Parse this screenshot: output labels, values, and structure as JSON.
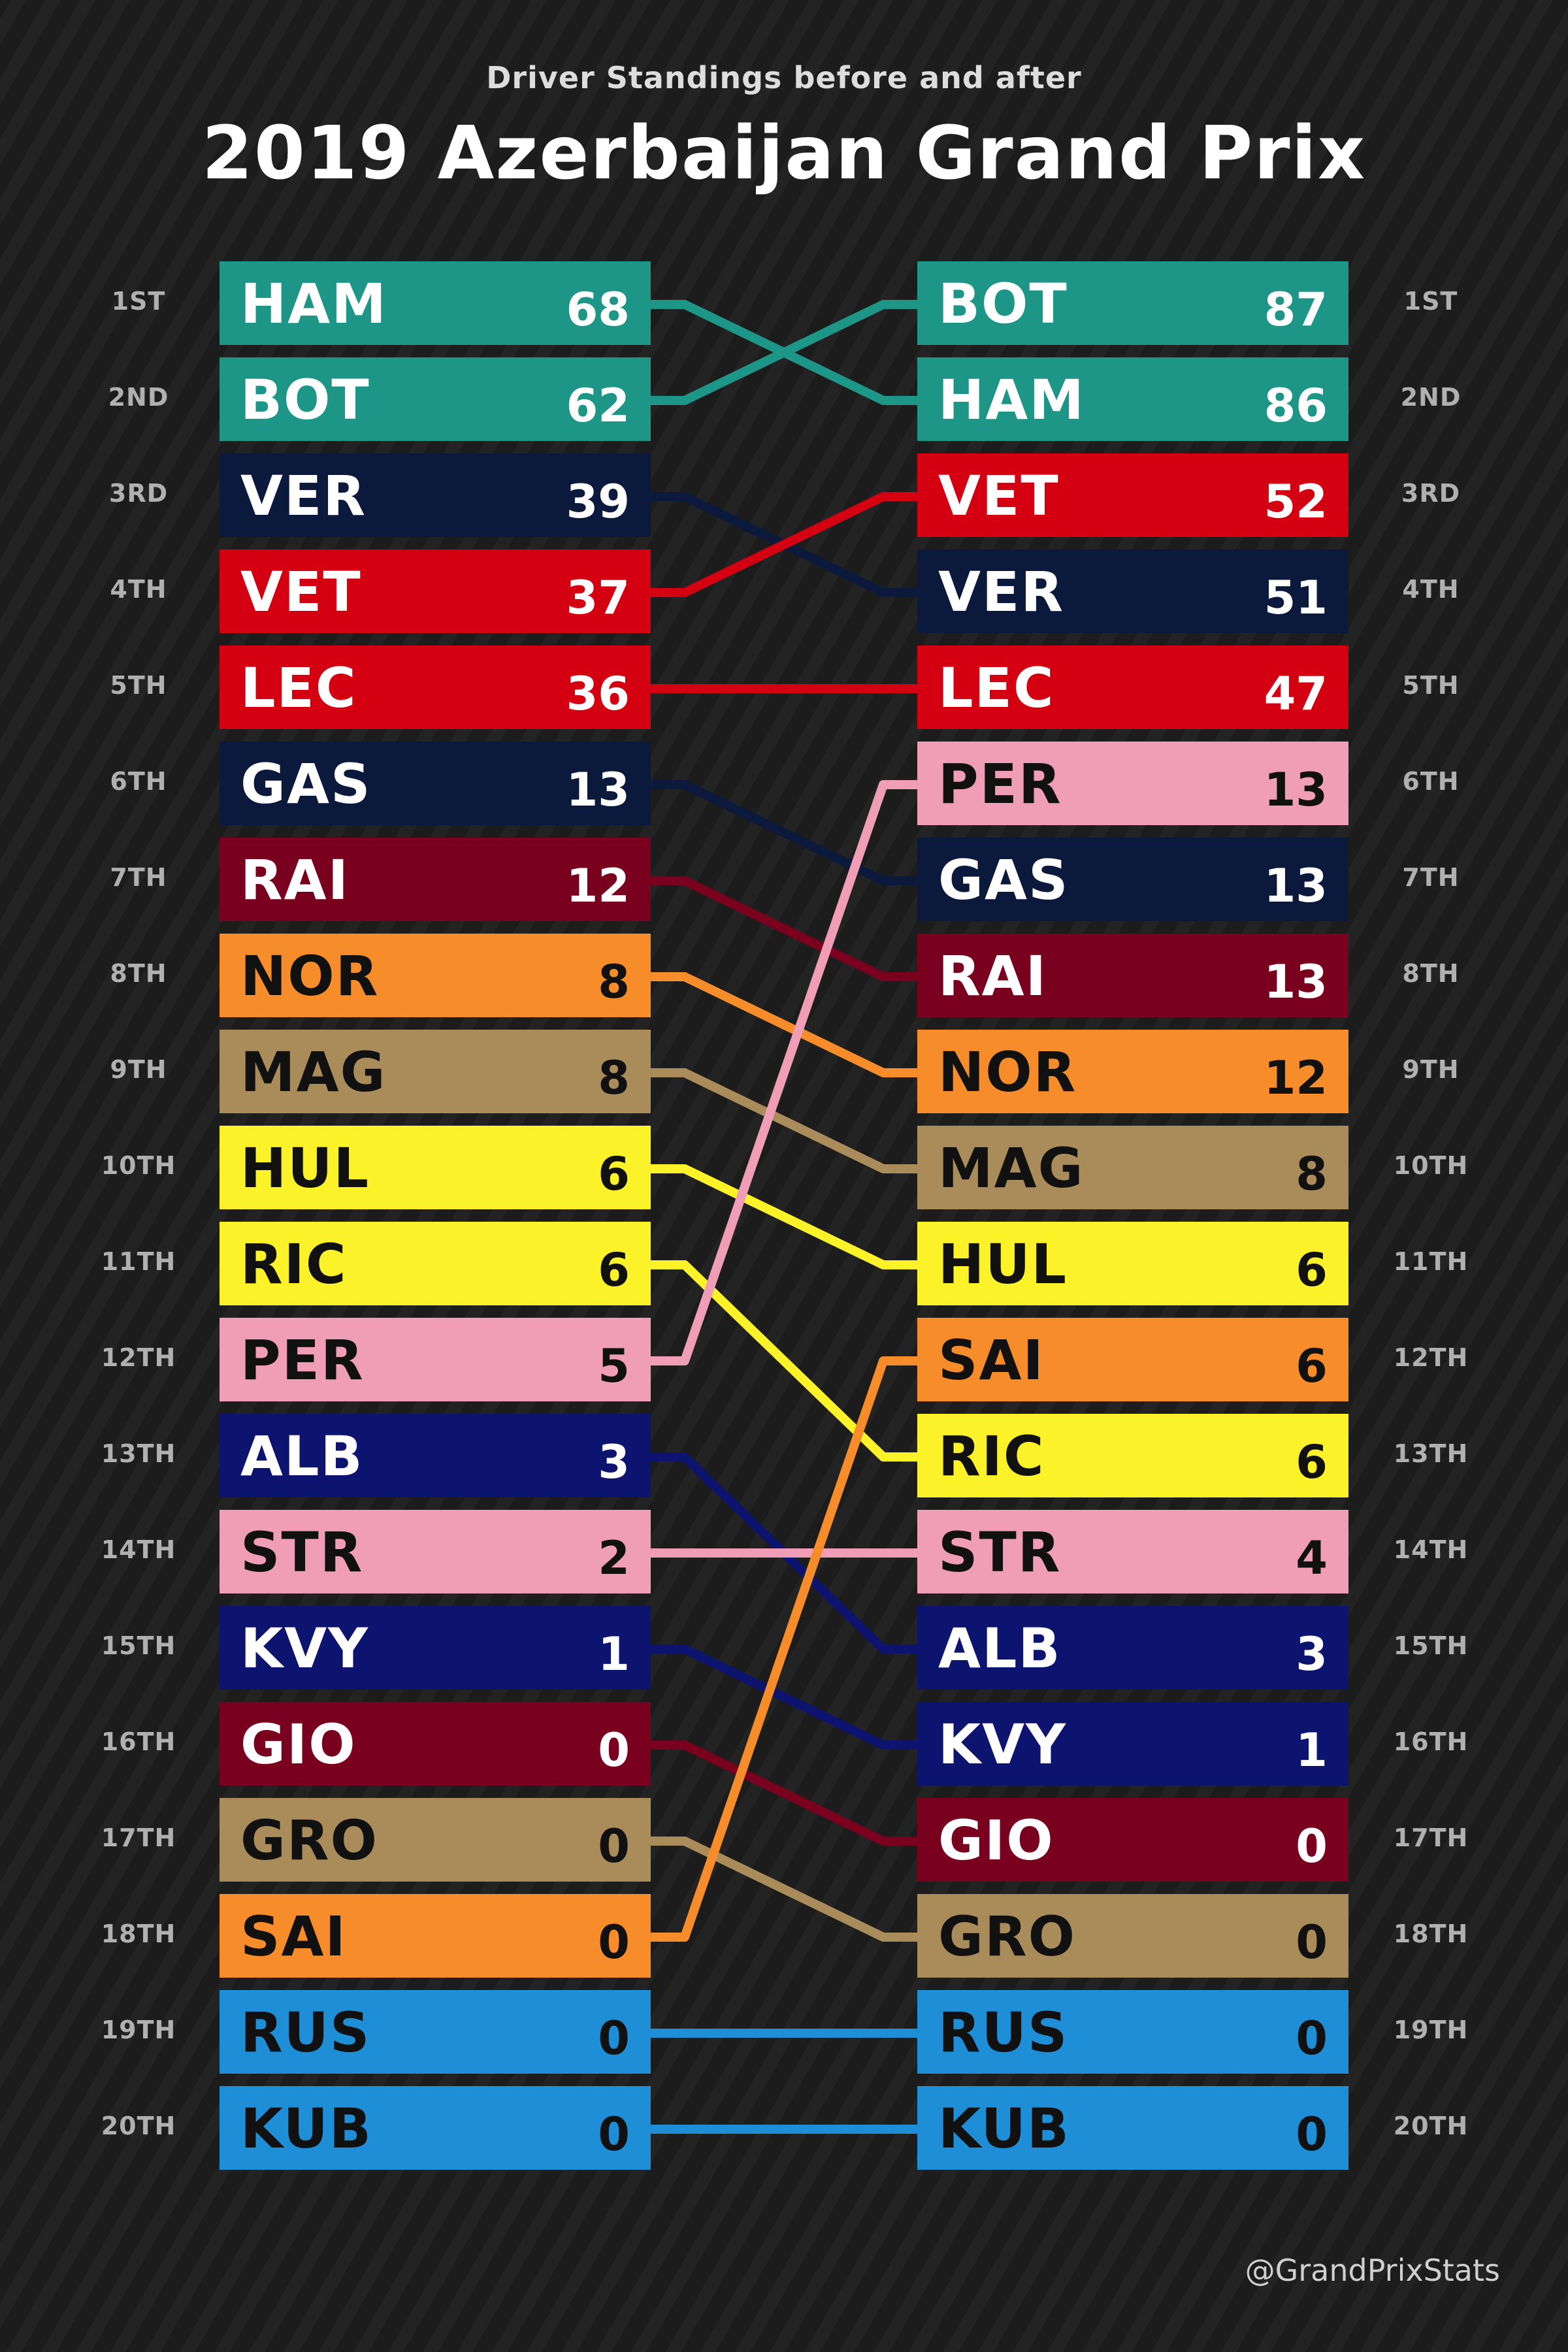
{
  "subtitle": "Driver Standings before and after",
  "title": "2019 Azerbaijan Grand Prix",
  "credit": "@GrandPrixStats",
  "chart_data": {
    "type": "bump",
    "title": "2019 Azerbaijan Grand Prix",
    "subtitle": "Driver Standings before and after",
    "positions": [
      "1ST",
      "2ND",
      "3RD",
      "4TH",
      "5TH",
      "6TH",
      "7TH",
      "8TH",
      "9TH",
      "10TH",
      "11TH",
      "12TH",
      "13TH",
      "14TH",
      "15TH",
      "16TH",
      "17TH",
      "18TH",
      "19TH",
      "20TH"
    ],
    "before": [
      {
        "code": "HAM",
        "points": 68
      },
      {
        "code": "BOT",
        "points": 62
      },
      {
        "code": "VER",
        "points": 39
      },
      {
        "code": "VET",
        "points": 37
      },
      {
        "code": "LEC",
        "points": 36
      },
      {
        "code": "GAS",
        "points": 13
      },
      {
        "code": "RAI",
        "points": 12
      },
      {
        "code": "NOR",
        "points": 8
      },
      {
        "code": "MAG",
        "points": 8
      },
      {
        "code": "HUL",
        "points": 6
      },
      {
        "code": "RIC",
        "points": 6
      },
      {
        "code": "PER",
        "points": 5
      },
      {
        "code": "ALB",
        "points": 3
      },
      {
        "code": "STR",
        "points": 2
      },
      {
        "code": "KVY",
        "points": 1
      },
      {
        "code": "GIO",
        "points": 0
      },
      {
        "code": "GRO",
        "points": 0
      },
      {
        "code": "SAI",
        "points": 0
      },
      {
        "code": "RUS",
        "points": 0
      },
      {
        "code": "KUB",
        "points": 0
      }
    ],
    "after": [
      {
        "code": "BOT",
        "points": 87
      },
      {
        "code": "HAM",
        "points": 86
      },
      {
        "code": "VET",
        "points": 52
      },
      {
        "code": "VER",
        "points": 51
      },
      {
        "code": "LEC",
        "points": 47
      },
      {
        "code": "PER",
        "points": 13
      },
      {
        "code": "GAS",
        "points": 13
      },
      {
        "code": "RAI",
        "points": 13
      },
      {
        "code": "NOR",
        "points": 12
      },
      {
        "code": "MAG",
        "points": 8
      },
      {
        "code": "HUL",
        "points": 6
      },
      {
        "code": "SAI",
        "points": 6
      },
      {
        "code": "RIC",
        "points": 6
      },
      {
        "code": "STR",
        "points": 4
      },
      {
        "code": "ALB",
        "points": 3
      },
      {
        "code": "KVY",
        "points": 1
      },
      {
        "code": "GIO",
        "points": 0
      },
      {
        "code": "GRO",
        "points": 0
      },
      {
        "code": "RUS",
        "points": 0
      },
      {
        "code": "KUB",
        "points": 0
      }
    ],
    "driver_colors": {
      "HAM": "#1d9688",
      "BOT": "#1d9688",
      "VER": "#0b1a3c",
      "GAS": "#0b1a3c",
      "VET": "#d40012",
      "LEC": "#d40012",
      "RAI": "#7a0020",
      "GIO": "#7a0020",
      "NOR": "#f78c2a",
      "SAI": "#f78c2a",
      "MAG": "#a98c5a",
      "GRO": "#a98c5a",
      "HUL": "#fbf22a",
      "RIC": "#fbf22a",
      "PER": "#f09eb7",
      "STR": "#f09eb7",
      "ALB": "#0d1470",
      "KVY": "#0d1470",
      "RUS": "#1e8fd6",
      "KUB": "#1e8fd6"
    },
    "text_colors": {
      "HAM": "#ffffff",
      "BOT": "#ffffff",
      "VER": "#ffffff",
      "GAS": "#ffffff",
      "VET": "#ffffff",
      "LEC": "#ffffff",
      "RAI": "#ffffff",
      "GIO": "#ffffff",
      "ALB": "#ffffff",
      "KVY": "#ffffff",
      "NOR": "#111111",
      "SAI": "#111111",
      "MAG": "#111111",
      "GRO": "#111111",
      "HUL": "#111111",
      "RIC": "#111111",
      "PER": "#111111",
      "STR": "#111111",
      "RUS": "#111111",
      "KUB": "#111111"
    }
  }
}
